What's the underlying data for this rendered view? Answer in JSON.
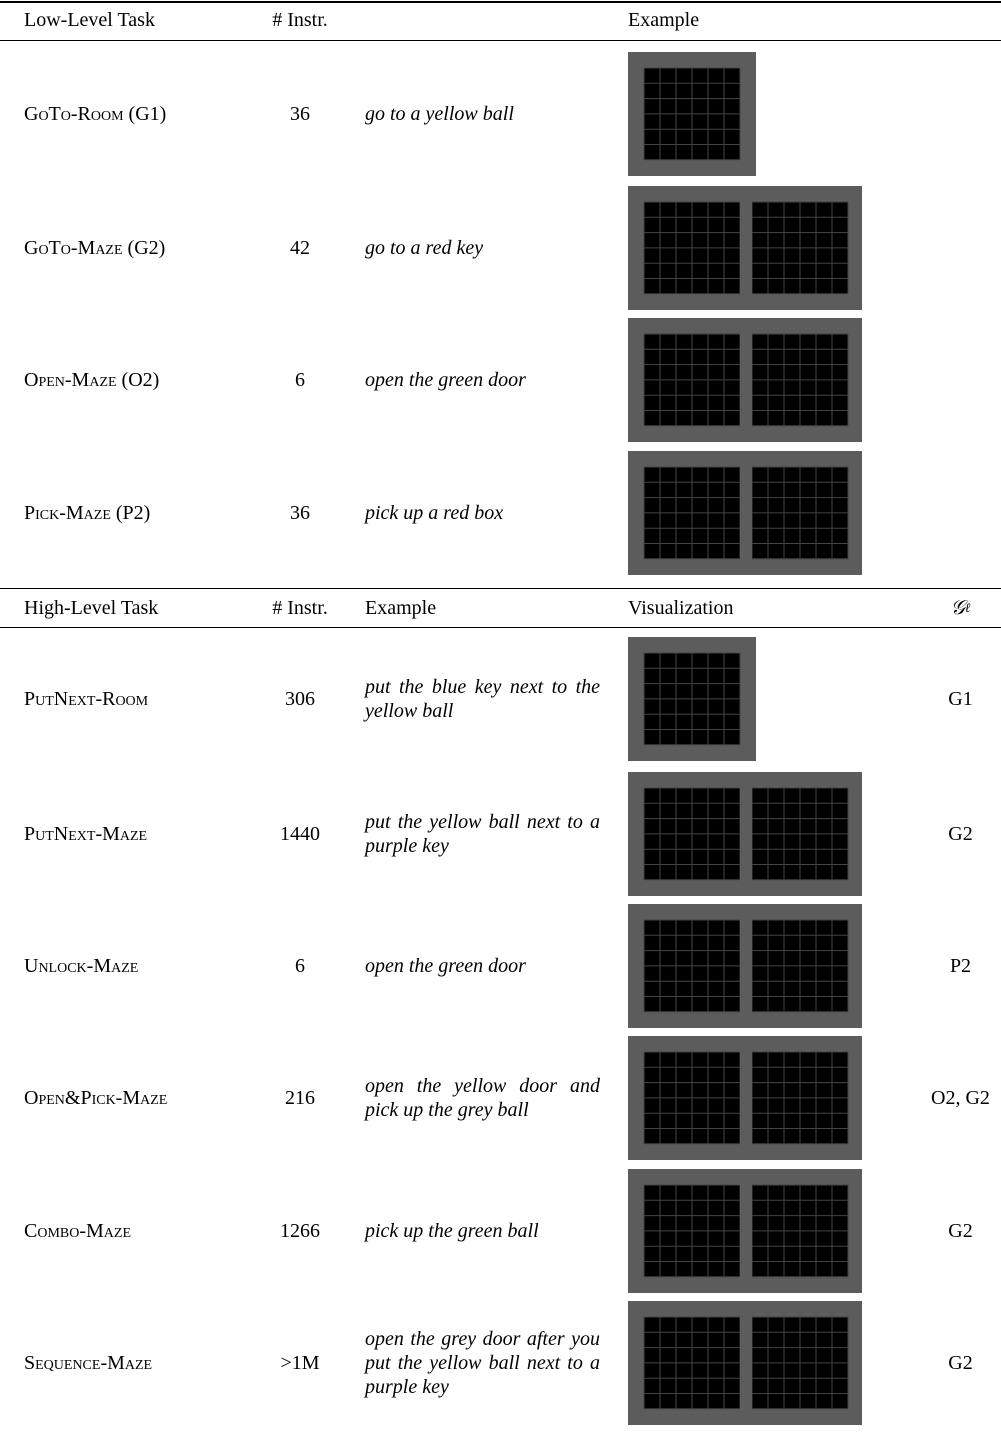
{
  "low": {
    "header": [
      "Low-Level Task",
      "# Instr.",
      "Example"
    ],
    "rows": [
      {
        "task": "GoTo-Room (G1)",
        "instr": "36",
        "example": "go to a yellow ball"
      },
      {
        "task": "GoTo-Maze (G2)",
        "instr": "42",
        "example": "go to a red key"
      },
      {
        "task": "Open-Maze (O2)",
        "instr": "6",
        "example": "open the green door"
      },
      {
        "task": "Pick-Maze (P2)",
        "instr": "36",
        "example": "pick up a red box"
      }
    ]
  },
  "high": {
    "header": [
      "High-Level Task",
      "# Instr.",
      "Example",
      "Visualization"
    ],
    "header_g": {
      "symbol": "𝒢",
      "subscript": "ℓ"
    },
    "rows": [
      {
        "task": "PutNext-Room",
        "instr": "306",
        "example": "put the blue key next to the yellow ball",
        "g": "G1"
      },
      {
        "task": "PutNext-Maze",
        "instr": "1440",
        "example": "put the yellow ball next to a purple key",
        "g": "G2"
      },
      {
        "task": "Unlock-Maze",
        "instr": "6",
        "example": "open the green door",
        "g": "P2"
      },
      {
        "task": "Open&Pick-Maze",
        "instr": "216",
        "example": "open the yellow door and pick up the grey ball",
        "g": "O2, G2"
      },
      {
        "task": "Combo-Maze",
        "instr": "1266",
        "example": "pick up the green ball",
        "g": "G2"
      },
      {
        "task": "Sequence-Maze",
        "instr": ">1M",
        "example": "open the grey door after you put the yellow ball next to a purple key",
        "g": "G2"
      }
    ]
  }
}
